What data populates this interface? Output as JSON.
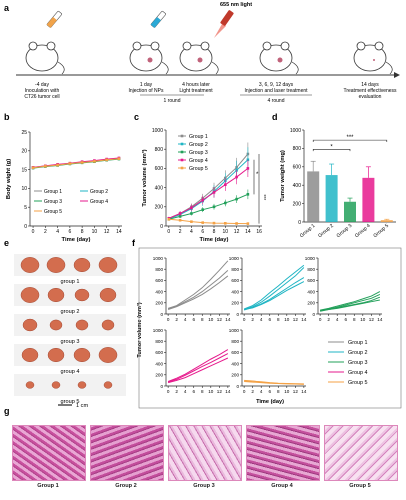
{
  "panels": {
    "a": "a",
    "b": "b",
    "c": "c",
    "d": "d",
    "e": "e",
    "f": "f",
    "g": "g"
  },
  "schematic": {
    "laser_label": "655 nm light",
    "steps": [
      {
        "day": "-4 day",
        "text": "Inoculation with\nCT26 tumor cell"
      },
      {
        "day": "1 day",
        "text": "Injection of NPs"
      },
      {
        "day": "4 hours later",
        "text": "Light treatment"
      },
      {
        "day": "3, 6, 9, 12 days",
        "text": "Injection and laser treatment"
      },
      {
        "day": "14 days",
        "text": "Treatment effectiveness\nevaluation"
      }
    ],
    "round1": "1 round",
    "round4": "4 round"
  },
  "colors": {
    "g1": "#8c8c8c",
    "g2": "#1fb5c4",
    "g3": "#22a05a",
    "g4": "#e6198c",
    "g5": "#f4a246"
  },
  "chart_data": [
    {
      "panel": "b",
      "type": "line",
      "xlabel": "Time (day)",
      "ylabel": "Body wight (g)",
      "xticks": [
        0,
        2,
        4,
        6,
        8,
        10,
        12,
        14
      ],
      "yticks": [
        0,
        5,
        10,
        15,
        20,
        25
      ],
      "xlim": [
        0,
        14
      ],
      "ylim": [
        0,
        25
      ],
      "x": [
        0,
        2,
        4,
        6,
        8,
        10,
        12,
        14
      ],
      "series": [
        {
          "name": "Group 1",
          "values": [
            15.6,
            16.0,
            16.3,
            16.7,
            17.0,
            17.3,
            17.7,
            18.0
          ]
        },
        {
          "name": "Group 2",
          "values": [
            15.5,
            15.9,
            16.2,
            16.6,
            16.9,
            17.2,
            17.6,
            17.9
          ]
        },
        {
          "name": "Group 3",
          "values": [
            15.4,
            15.8,
            16.1,
            16.5,
            16.8,
            17.1,
            17.5,
            17.8
          ]
        },
        {
          "name": "Group 4",
          "values": [
            15.6,
            16.0,
            16.4,
            16.7,
            17.1,
            17.4,
            17.8,
            18.1
          ]
        },
        {
          "name": "Group 5",
          "values": [
            15.5,
            15.9,
            16.2,
            16.6,
            16.9,
            17.2,
            17.6,
            17.9
          ]
        }
      ]
    },
    {
      "panel": "c",
      "type": "line",
      "xlabel": "Time (day)",
      "ylabel": "Tumor volume (mm³)",
      "xticks": [
        0,
        2,
        4,
        6,
        8,
        10,
        12,
        14,
        16
      ],
      "yticks": [
        0,
        200,
        400,
        600,
        800,
        1000
      ],
      "xlim": [
        0,
        16
      ],
      "ylim": [
        0,
        1000
      ],
      "x": [
        0,
        2,
        4,
        6,
        8,
        10,
        12,
        14
      ],
      "series": [
        {
          "name": "Group 1",
          "values": [
            80,
            130,
            200,
            290,
            390,
            500,
            610,
            750
          ],
          "err": [
            15,
            25,
            35,
            45,
            60,
            80,
            100,
            120
          ]
        },
        {
          "name": "Group 2",
          "values": [
            75,
            120,
            180,
            260,
            360,
            470,
            580,
            690
          ],
          "err": [
            15,
            25,
            35,
            50,
            65,
            80,
            100,
            130
          ]
        },
        {
          "name": "Group 3",
          "values": [
            70,
            100,
            130,
            170,
            200,
            240,
            280,
            330
          ],
          "err": [
            10,
            15,
            20,
            25,
            30,
            35,
            40,
            50
          ]
        },
        {
          "name": "Group 4",
          "values": [
            80,
            130,
            190,
            270,
            350,
            430,
            510,
            600
          ],
          "err": [
            15,
            25,
            35,
            45,
            55,
            65,
            75,
            90
          ]
        },
        {
          "name": "Group 5",
          "values": [
            70,
            60,
            45,
            35,
            30,
            28,
            26,
            25
          ],
          "err": [
            10,
            10,
            8,
            8,
            6,
            6,
            5,
            5
          ]
        }
      ],
      "significance": [
        "*",
        "***"
      ]
    },
    {
      "panel": "d",
      "type": "bar",
      "ylabel": "Tumor weight (mg)",
      "categories": [
        "Group 1",
        "Group 2",
        "Group 3",
        "Group 4",
        "Group 5"
      ],
      "values": [
        550,
        510,
        220,
        480,
        20
      ],
      "err": [
        110,
        120,
        40,
        120,
        10
      ],
      "yticks": [
        0,
        200,
        400,
        600,
        800,
        1000
      ],
      "ylim": [
        0,
        1000
      ],
      "significance": [
        "*",
        "***"
      ]
    },
    {
      "panel": "f",
      "type": "line",
      "xlabel": "Time (day)",
      "ylabel": "Tumor volume (mm³)",
      "xticks": [
        0,
        2,
        4,
        6,
        8,
        10,
        12,
        14
      ],
      "yticks": [
        0,
        200,
        400,
        600,
        800,
        1000
      ],
      "xlim": [
        0,
        14
      ],
      "ylim": [
        0,
        1000
      ],
      "x": [
        0,
        2,
        4,
        6,
        8,
        10,
        12,
        14
      ],
      "groups": [
        {
          "name": "Group 1",
          "lines": [
            [
              100,
              150,
              250,
              350,
              470,
              620,
              780,
              950
            ],
            [
              90,
              140,
              220,
              300,
              400,
              520,
              640,
              780
            ],
            [
              80,
              130,
              200,
              270,
              350,
              450,
              560,
              680
            ]
          ]
        },
        {
          "name": "Group 2",
          "lines": [
            [
              90,
              150,
              250,
              380,
              500,
              630,
              750,
              870
            ],
            [
              80,
              130,
              210,
              320,
              440,
              560,
              680,
              830
            ],
            [
              70,
              120,
              180,
              260,
              360,
              460,
              560,
              650
            ],
            [
              80,
              110,
              170,
              240,
              330,
              420,
              500,
              580
            ]
          ]
        },
        {
          "name": "Group 3",
          "lines": [
            [
              60,
              90,
              120,
              160,
              200,
              240,
              280,
              350
            ],
            [
              70,
              100,
              140,
              180,
              220,
              270,
              320,
              400
            ],
            [
              50,
              80,
              100,
              130,
              160,
              190,
              220,
              250
            ],
            [
              60,
              80,
              110,
              140,
              170,
              200,
              240,
              300
            ]
          ]
        },
        {
          "name": "Group 4",
          "lines": [
            [
              80,
              140,
              210,
              300,
              390,
              480,
              560,
              650
            ],
            [
              70,
              120,
              190,
              270,
              350,
              420,
              500,
              580
            ],
            [
              60,
              100,
              150,
              220,
              290,
              360,
              430,
              500
            ]
          ]
        },
        {
          "name": "Group 5",
          "lines": [
            [
              100,
              90,
              70,
              55,
              45,
              40,
              35,
              30
            ],
            [
              90,
              85,
              75,
              60,
              50,
              45,
              40,
              38
            ],
            [
              80,
              70,
              60,
              50,
              45,
              40,
              38,
              35
            ]
          ]
        }
      ],
      "legend": [
        "Group 1",
        "Group 2",
        "Group 3",
        "Group 4",
        "Group 5"
      ]
    }
  ],
  "photo": {
    "labels": [
      "group 1",
      "group 2",
      "group 3",
      "group 4",
      "group 5"
    ],
    "scalebar": "1 cm"
  },
  "histology": {
    "labels": [
      "Group 1",
      "Group 2",
      "Group 3",
      "Group 4",
      "Group 5"
    ]
  }
}
